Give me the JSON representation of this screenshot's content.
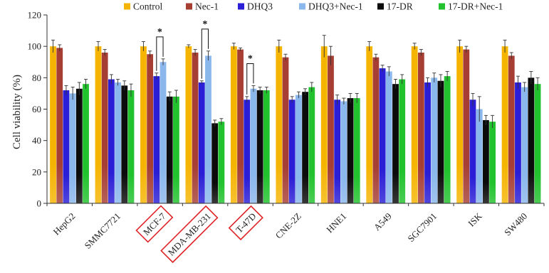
{
  "chart_data": {
    "type": "bar",
    "ylabel": "Cell viability (%)",
    "ylim": [
      0,
      120
    ],
    "yticks": [
      0,
      20,
      40,
      60,
      80,
      100,
      120
    ],
    "legend_position": "top",
    "categories": [
      "HepG2",
      "SMMC7721",
      "MCF-7",
      "MDA-MB-231",
      "T-47D",
      "CNE-2Z",
      "HNE1",
      "A549",
      "SGC7901",
      "ISK",
      "SW480"
    ],
    "highlighted_categories": [
      "MCF-7",
      "MDA-MB-231",
      "T-47D"
    ],
    "highlight_color": "#e0262a",
    "series": [
      {
        "name": "Control",
        "color": "#f5b400",
        "values": [
          100,
          100,
          100,
          100,
          100,
          100,
          100,
          100,
          100,
          100,
          100
        ],
        "errors": [
          4,
          3,
          3,
          1,
          2,
          4,
          7,
          3,
          2,
          4,
          4
        ]
      },
      {
        "name": "Nec-1",
        "color": "#a63e33",
        "values": [
          99,
          96,
          95,
          96,
          98,
          93,
          94,
          93,
          96,
          98,
          94
        ],
        "errors": [
          2,
          2,
          2,
          2,
          1,
          2,
          6,
          2,
          2,
          2,
          2
        ]
      },
      {
        "name": "DHQ3",
        "color": "#2a1ed6",
        "values": [
          72,
          79,
          81,
          77,
          66,
          66,
          66,
          86,
          77,
          66,
          77
        ],
        "errors": [
          3,
          3,
          2,
          1,
          2,
          2,
          3,
          2,
          3,
          4,
          4
        ]
      },
      {
        "name": "DHQ3+Nec-1",
        "color": "#8ab7ec",
        "values": [
          70,
          77,
          90,
          94,
          73,
          69,
          65,
          84,
          80,
          60,
          74
        ],
        "errors": [
          4,
          2,
          2,
          3,
          2,
          2,
          2,
          3,
          3,
          8,
          3
        ]
      },
      {
        "name": "17-DR",
        "color": "#0b0b0b",
        "values": [
          73,
          75,
          68,
          51,
          72,
          71,
          67,
          76,
          78,
          53,
          80
        ],
        "errors": [
          4,
          3,
          3,
          2,
          2,
          2,
          3,
          3,
          4,
          3,
          4
        ]
      },
      {
        "name": "17-DR+Nec-1",
        "color": "#22c22e",
        "values": [
          76,
          72,
          68,
          52,
          72,
          74,
          67,
          79,
          81,
          52,
          76
        ],
        "errors": [
          3,
          4,
          4,
          2,
          2,
          3,
          3,
          3,
          3,
          4,
          4
        ]
      }
    ],
    "significance": [
      {
        "category": "MCF-7",
        "from_series": 2,
        "to_series": 3,
        "label": "*"
      },
      {
        "category": "MDA-MB-231",
        "from_series": 2,
        "to_series": 3,
        "label": "*"
      },
      {
        "category": "T-47D",
        "from_series": 2,
        "to_series": 3,
        "label": "*"
      }
    ]
  }
}
